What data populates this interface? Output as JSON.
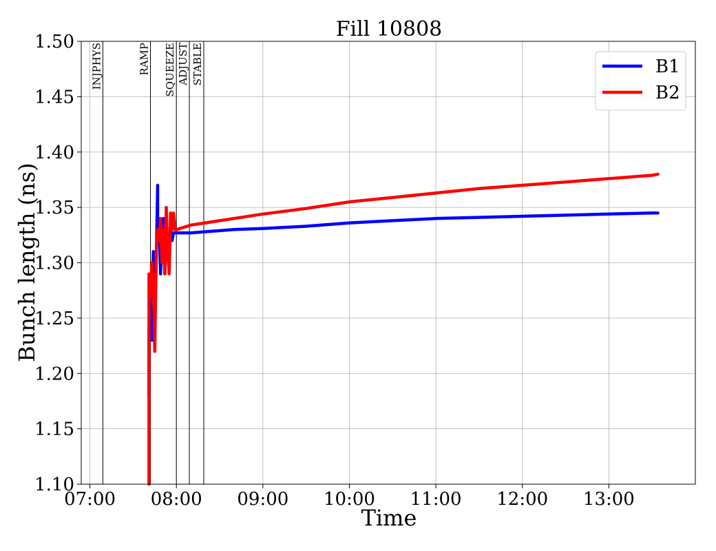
{
  "chart_data": {
    "type": "line",
    "title": "Fill 10808",
    "xlabel": "Time",
    "ylabel": "Bunch length (ns)",
    "xlim": [
      "06:54",
      "14:00"
    ],
    "ylim": [
      1.1,
      1.5
    ],
    "xticks": [
      "07:00",
      "08:00",
      "09:00",
      "10:00",
      "11:00",
      "12:00",
      "13:00"
    ],
    "yticks": [
      "1.10",
      "1.15",
      "1.20",
      "1.25",
      "1.30",
      "1.35",
      "1.40",
      "1.45",
      "1.50"
    ],
    "grid": true,
    "legend_position": "top-right",
    "phases": [
      {
        "label": "INJPHYS",
        "time": "07:09"
      },
      {
        "label": "RAMP",
        "time": "07:42"
      },
      {
        "label": "SQUEEZE",
        "time": "08:00"
      },
      {
        "label": "ADJUST",
        "time": "08:09"
      },
      {
        "label": "STABLE",
        "time": "08:19"
      }
    ],
    "series": [
      {
        "name": "B1",
        "color": "#0000ff",
        "x": [
          "07:41",
          "07:41",
          "07:42",
          "07:43",
          "07:44",
          "07:45",
          "07:46",
          "07:47",
          "07:47",
          "07:48",
          "07:49",
          "07:50",
          "07:50",
          "07:51",
          "07:52",
          "07:53",
          "07:54",
          "07:55",
          "07:56",
          "07:57",
          "07:58",
          "08:00",
          "08:10",
          "08:20",
          "08:40",
          "09:00",
          "09:30",
          "10:00",
          "10:30",
          "11:00",
          "11:30",
          "12:00",
          "12:30",
          "13:00",
          "13:30",
          "13:34"
        ],
        "y": [
          1.18,
          1.24,
          1.27,
          1.23,
          1.31,
          1.25,
          1.3,
          1.37,
          1.32,
          1.34,
          1.29,
          1.33,
          1.3,
          1.34,
          1.29,
          1.33,
          1.31,
          1.32,
          1.33,
          1.32,
          1.327,
          1.327,
          1.327,
          1.328,
          1.33,
          1.331,
          1.333,
          1.336,
          1.338,
          1.34,
          1.341,
          1.342,
          1.343,
          1.344,
          1.345,
          1.345
        ]
      },
      {
        "name": "B2",
        "color": "#ff0000",
        "x": [
          "07:41",
          "07:41",
          "07:42",
          "07:43",
          "07:44",
          "07:44",
          "07:45",
          "07:46",
          "07:47",
          "07:48",
          "07:49",
          "07:50",
          "07:51",
          "07:52",
          "07:53",
          "07:54",
          "07:55",
          "07:56",
          "07:57",
          "07:58",
          "07:59",
          "08:00",
          "08:05",
          "08:10",
          "08:20",
          "08:40",
          "09:00",
          "09:30",
          "10:00",
          "10:30",
          "11:00",
          "11:30",
          "12:00",
          "12:30",
          "13:00",
          "13:30",
          "13:34"
        ],
        "y": [
          1.1,
          1.29,
          1.27,
          1.3,
          1.26,
          1.29,
          1.22,
          1.31,
          1.33,
          1.32,
          1.34,
          1.3,
          1.33,
          1.29,
          1.35,
          1.31,
          1.29,
          1.345,
          1.33,
          1.345,
          1.33,
          1.33,
          1.332,
          1.334,
          1.336,
          1.34,
          1.344,
          1.349,
          1.355,
          1.359,
          1.363,
          1.367,
          1.37,
          1.373,
          1.376,
          1.379,
          1.38
        ]
      }
    ]
  }
}
